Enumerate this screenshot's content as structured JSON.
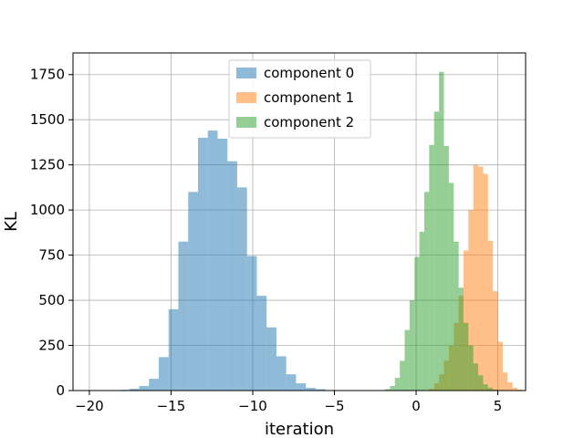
{
  "chart_data": {
    "type": "bar",
    "subtype": "overlaid-histogram",
    "title": "",
    "xlabel": "iteration",
    "ylabel": "KL",
    "xlim": [
      -21,
      6.7
    ],
    "ylim": [
      0,
      1870
    ],
    "xticks": [
      -20,
      -15,
      -10,
      -5,
      0,
      5
    ],
    "yticks": [
      0,
      250,
      500,
      750,
      1000,
      1250,
      1500,
      1750
    ],
    "grid": true,
    "legend_position": "top-center",
    "bar_opacity": 0.5,
    "series": [
      {
        "name": "component 0",
        "color": "#1f77b4",
        "bin_start": -19.35,
        "bin_width": 0.6,
        "values": [
          1,
          2,
          4,
          10,
          25,
          65,
          185,
          450,
          825,
          1100,
          1400,
          1440,
          1395,
          1270,
          1125,
          745,
          525,
          350,
          190,
          90,
          40,
          15,
          8,
          3,
          1
        ]
      },
      {
        "name": "component 1",
        "color": "#ff7f0e",
        "bin_start": 0.5,
        "bin_width": 0.3,
        "values": [
          2,
          10,
          40,
          90,
          165,
          250,
          375,
          525,
          775,
          1000,
          1250,
          1240,
          1200,
          830,
          550,
          270,
          100,
          45,
          15,
          5
        ]
      },
      {
        "name": "component 2",
        "color": "#2ca02c",
        "bin_start": -2.2,
        "bin_width": 0.3,
        "values": [
          2,
          8,
          25,
          70,
          165,
          335,
          500,
          740,
          880,
          1100,
          1360,
          1545,
          1765,
          1355,
          1150,
          825,
          570,
          375,
          250,
          150,
          85,
          35,
          15,
          5,
          2
        ]
      }
    ]
  }
}
